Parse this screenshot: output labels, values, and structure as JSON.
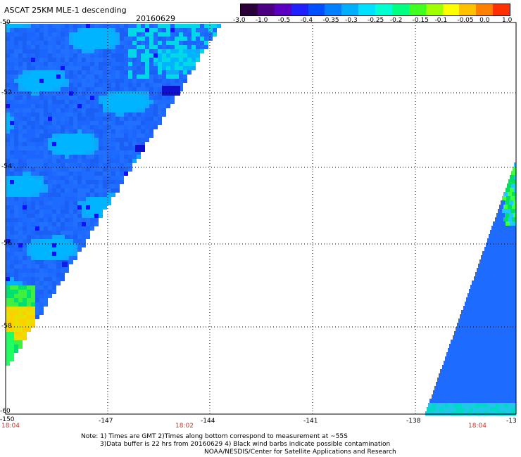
{
  "header": {
    "title": "ASCAT 25KM MLE-1 descending",
    "date": "20160629"
  },
  "colorbar": {
    "colors": [
      "#2a0038",
      "#4b0082",
      "#5a00c0",
      "#2020ff",
      "#0050ff",
      "#0080ff",
      "#00b0ff",
      "#00e0ff",
      "#00ffd0",
      "#00ff80",
      "#40ff20",
      "#a0ff00",
      "#ffff00",
      "#ffc000",
      "#ff8000",
      "#ff3000"
    ],
    "labels": [
      "-3.0",
      "-1.0",
      "-0.5",
      "-0.4",
      "-0.35",
      "-0.3",
      "-0.25",
      "-0.2",
      "-0.15",
      "-0.1",
      "-0.05",
      "0.0",
      "1.0"
    ]
  },
  "map": {
    "lon_ticks": [
      "-150",
      "-147",
      "-144",
      "-141",
      "-138",
      "-13"
    ],
    "lat_ticks": [
      "-50",
      "-52",
      "-54",
      "-56",
      "-58",
      "-60"
    ],
    "times": [
      "18:04",
      "18:02",
      "18:04"
    ]
  },
  "notes": {
    "line1": "Note: 1) Times are GMT 2)Times along bottom correspond to measurement at ~55S",
    "line2": "3)Data buffer is 22 hrs from 20160629 4) Black wind barbs indicate possible contamination",
    "line3": "NOAA/NESDIS/Center for Satellite Applications and Research"
  },
  "colors": {
    "swath_blue": "#1e6cff",
    "swath_light": "#00b4ff",
    "time_red": "#c0392b"
  }
}
